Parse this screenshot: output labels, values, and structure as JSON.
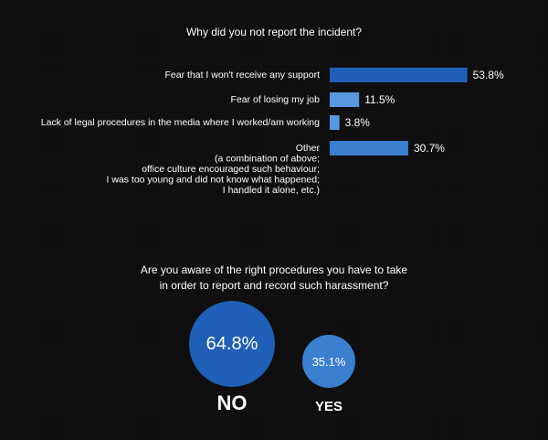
{
  "colors": {
    "background": "#0d0d0d",
    "bar_primary": "#1f5fb8",
    "bar_light": "#5a97e0",
    "bubble_no": "#1f5fb8",
    "bubble_yes": "#3a7fd0"
  },
  "chart_data": [
    {
      "type": "bar",
      "orientation": "horizontal",
      "title": "Why did you not report the incident?",
      "categories": [
        [
          "Fear that I won't receive any support"
        ],
        [
          "Fear of losing my job"
        ],
        [
          "Lack of legal procedures in the media where I worked/am working"
        ],
        [
          "Other",
          "(a combination of above;",
          "office culture encouraged such behaviour;",
          "I was too young and did not know what happened;",
          "I handled it alone, etc.)"
        ]
      ],
      "values": [
        53.8,
        11.5,
        3.8,
        30.7
      ],
      "value_labels": [
        "53.8%",
        "11.5%",
        "3.8%",
        "30.7%"
      ],
      "bar_colors": [
        "#1f5fb8",
        "#5a97e0",
        "#5a97e0",
        "#3a7fd0"
      ],
      "xlim": [
        0,
        100
      ],
      "grid": false
    },
    {
      "type": "bubble",
      "title_lines": [
        "Are you aware of the right procedures you have to take",
        "in order to report and record such harassment?"
      ],
      "items": [
        {
          "label": "NO",
          "value": 64.8,
          "value_label": "64.8%"
        },
        {
          "label": "YES",
          "value": 35.1,
          "value_label": "35.1%"
        }
      ]
    }
  ]
}
